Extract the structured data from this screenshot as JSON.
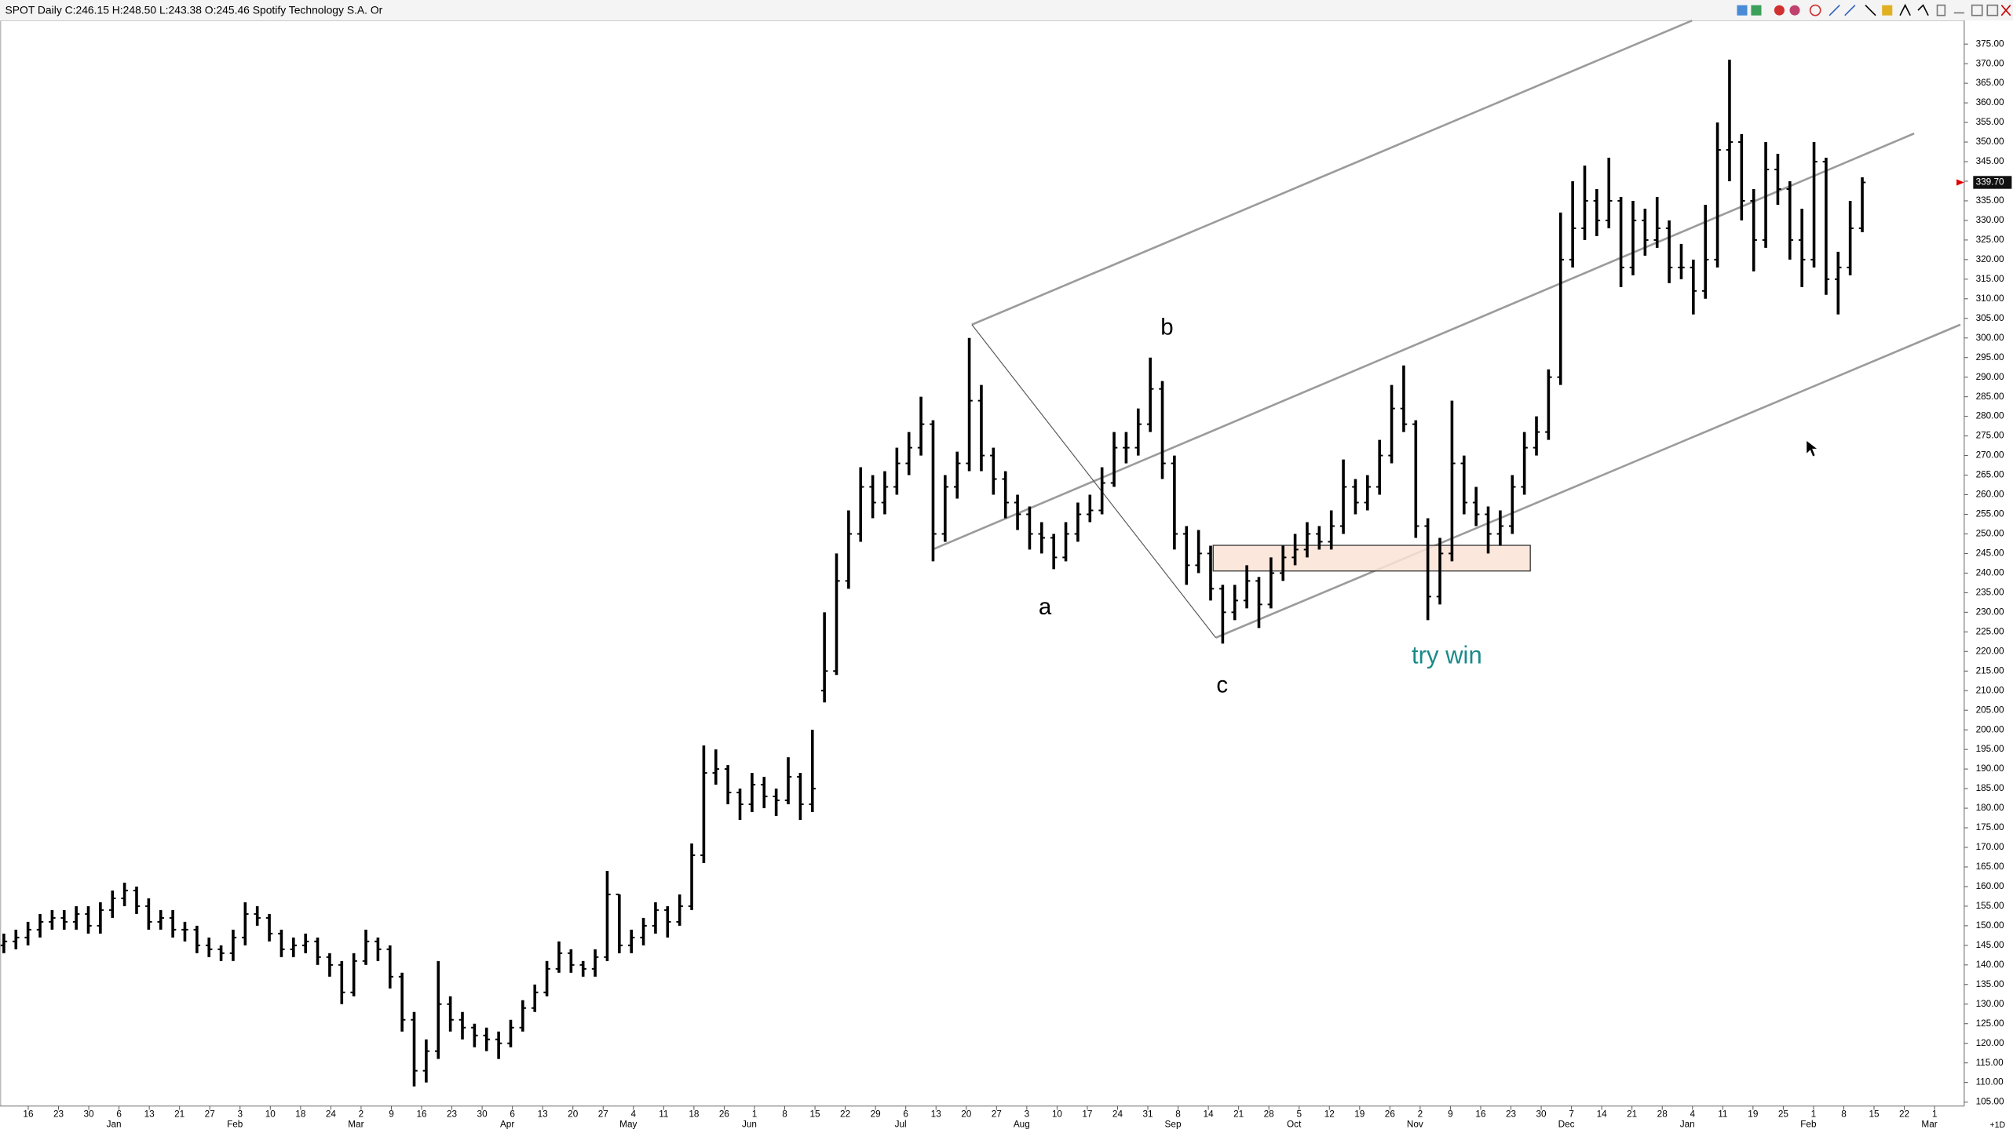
{
  "chart_data": {
    "type": "ohlc",
    "title": "SPOT Daily C:246.15 H:248.50 L:243.38 O:245.46 Spotify Technology S.A. Or",
    "color": "#000000",
    "last_price": {
      "value": 339.7,
      "label": "339.70"
    },
    "corner_label": "+1D",
    "annotations": [
      "a",
      "b",
      "c",
      "try win"
    ],
    "ylim": [
      104,
      381
    ],
    "yticks": [
      {
        "value": 105,
        "label": "105.00"
      },
      {
        "value": 110,
        "label": "110.00"
      },
      {
        "value": 115,
        "label": "115.00"
      },
      {
        "value": 120,
        "label": "120.00"
      },
      {
        "value": 125,
        "label": "125.00"
      },
      {
        "value": 130,
        "label": "130.00"
      },
      {
        "value": 135,
        "label": "135.00"
      },
      {
        "value": 140,
        "label": "140.00"
      },
      {
        "value": 145,
        "label": "145.00"
      },
      {
        "value": 150,
        "label": "150.00"
      },
      {
        "value": 155,
        "label": "155.00"
      },
      {
        "value": 160,
        "label": "160.00"
      },
      {
        "value": 165,
        "label": "165.00"
      },
      {
        "value": 170,
        "label": "170.00"
      },
      {
        "value": 175,
        "label": "175.00"
      },
      {
        "value": 180,
        "label": "180.00"
      },
      {
        "value": 185,
        "label": "185.00"
      },
      {
        "value": 190,
        "label": "190.00"
      },
      {
        "value": 195,
        "label": "195.00"
      },
      {
        "value": 200,
        "label": "200.00"
      },
      {
        "value": 205,
        "label": "205.00"
      },
      {
        "value": 210,
        "label": "210.00"
      },
      {
        "value": 215,
        "label": "215.00"
      },
      {
        "value": 220,
        "label": "220.00"
      },
      {
        "value": 225,
        "label": "225.00"
      },
      {
        "value": 230,
        "label": "230.00"
      },
      {
        "value": 235,
        "label": "235.00"
      },
      {
        "value": 240,
        "label": "240.00"
      },
      {
        "value": 245,
        "label": "245.00"
      },
      {
        "value": 250,
        "label": "250.00"
      },
      {
        "value": 255,
        "label": "255.00"
      },
      {
        "value": 260,
        "label": "260.00"
      },
      {
        "value": 265,
        "label": "265.00"
      },
      {
        "value": 270,
        "label": "270.00"
      },
      {
        "value": 275,
        "label": "275.00"
      },
      {
        "value": 280,
        "label": "280.00"
      },
      {
        "value": 285,
        "label": "285.00"
      },
      {
        "value": 290,
        "label": "290.00"
      },
      {
        "value": 295,
        "label": "295.00"
      },
      {
        "value": 300,
        "label": "300.00"
      },
      {
        "value": 305,
        "label": "305.00"
      },
      {
        "value": 310,
        "label": "310.00"
      },
      {
        "value": 315,
        "label": "315.00"
      },
      {
        "value": 320,
        "label": "320.00"
      },
      {
        "value": 325,
        "label": "325.00"
      },
      {
        "value": 330,
        "label": "330.00"
      },
      {
        "value": 335,
        "label": "335.00"
      },
      {
        "value": 340,
        "label": "340.00"
      },
      {
        "value": 345,
        "label": "345.00"
      },
      {
        "value": 350,
        "label": "350.00"
      },
      {
        "value": 355,
        "label": "355.00"
      },
      {
        "value": 360,
        "label": "360.00"
      },
      {
        "value": 365,
        "label": "365.00"
      },
      {
        "value": 370,
        "label": "370.00"
      },
      {
        "value": 375,
        "label": "375.00"
      }
    ],
    "x_ticks": [
      "16",
      "23",
      "30",
      {
        "day": "6",
        "month": "Jan"
      },
      "13",
      "21",
      "27",
      {
        "day": "3",
        "month": "Feb"
      },
      "10",
      "18",
      "24",
      {
        "day": "2",
        "month": "Mar"
      },
      "9",
      "16",
      "23",
      "30",
      {
        "day": "6",
        "month": "Apr"
      },
      "13",
      "20",
      "27",
      {
        "day": "4",
        "month": "May"
      },
      "11",
      "18",
      "26",
      {
        "day": "1",
        "month": "Jun"
      },
      "8",
      "15",
      "22",
      "29",
      {
        "day": "6",
        "month": "Jul"
      },
      "13",
      "20",
      "27",
      {
        "day": "3",
        "month": "Aug"
      },
      "10",
      "17",
      "24",
      "31",
      {
        "day": "8",
        "month": "Sep"
      },
      "14",
      "21",
      "28",
      {
        "day": "5",
        "month": "Oct"
      },
      "12",
      "19",
      "26",
      {
        "day": "2",
        "month": "Nov"
      },
      "9",
      "16",
      "23",
      "30",
      {
        "day": "7",
        "month": "Dec"
      },
      "14",
      "21",
      "28",
      {
        "day": "4",
        "month": "Jan"
      },
      "11",
      "19",
      "25",
      {
        "day": "1",
        "month": "Feb"
      },
      "8",
      "15",
      "22",
      {
        "day": "1",
        "month": "Mar"
      }
    ],
    "bars": [
      [
        145,
        148,
        143,
        146
      ],
      [
        146,
        149,
        144,
        147
      ],
      [
        147,
        151,
        145,
        149
      ],
      [
        149,
        153,
        147,
        151
      ],
      [
        151,
        154,
        149,
        152
      ],
      [
        152,
        154,
        149,
        151
      ],
      [
        151,
        155,
        149,
        153
      ],
      [
        153,
        155,
        148,
        150
      ],
      [
        150,
        156,
        148,
        154
      ],
      [
        154,
        159,
        152,
        157
      ],
      [
        157,
        161,
        155,
        159
      ],
      [
        159,
        160,
        153,
        155
      ],
      [
        155,
        157,
        149,
        151
      ],
      [
        151,
        154,
        149,
        152
      ],
      [
        152,
        154,
        147,
        149
      ],
      [
        149,
        151,
        146,
        149
      ],
      [
        149,
        150,
        143,
        145
      ],
      [
        145,
        147,
        142,
        144
      ],
      [
        144,
        145,
        141,
        143
      ],
      [
        143,
        149,
        141,
        147
      ],
      [
        147,
        156,
        145,
        153
      ],
      [
        153,
        155,
        150,
        152
      ],
      [
        152,
        153,
        146,
        148
      ],
      [
        148,
        149,
        142,
        144
      ],
      [
        144,
        147,
        142,
        145
      ],
      [
        145,
        148,
        143,
        146
      ],
      [
        146,
        147,
        140,
        142
      ],
      [
        142,
        143,
        137,
        140
      ],
      [
        140,
        141,
        130,
        133
      ],
      [
        133,
        143,
        132,
        141
      ],
      [
        141,
        149,
        140,
        146
      ],
      [
        146,
        147,
        141,
        144
      ],
      [
        144,
        145,
        134,
        137
      ],
      [
        137,
        138,
        123,
        126
      ],
      [
        126,
        128,
        109,
        113
      ],
      [
        113,
        121,
        110,
        118
      ],
      [
        118,
        141,
        116,
        130
      ],
      [
        130,
        132,
        123,
        126
      ],
      [
        126,
        128,
        121,
        124
      ],
      [
        124,
        125,
        119,
        122
      ],
      [
        122,
        124,
        118,
        121
      ],
      [
        121,
        123,
        116,
        120
      ],
      [
        120,
        126,
        119,
        124
      ],
      [
        124,
        131,
        123,
        129
      ],
      [
        129,
        135,
        128,
        133
      ],
      [
        133,
        141,
        132,
        139
      ],
      [
        139,
        146,
        138,
        143
      ],
      [
        143,
        144,
        138,
        140
      ],
      [
        140,
        141,
        137,
        139
      ],
      [
        139,
        144,
        137,
        142
      ],
      [
        142,
        164,
        141,
        158
      ],
      [
        158,
        158,
        143,
        145
      ],
      [
        145,
        149,
        143,
        147
      ],
      [
        147,
        152,
        145,
        150
      ],
      [
        150,
        156,
        148,
        154
      ],
      [
        154,
        155,
        147,
        151
      ],
      [
        151,
        158,
        150,
        155
      ],
      [
        155,
        171,
        154,
        168
      ],
      [
        168,
        196,
        166,
        189
      ],
      [
        189,
        195,
        186,
        190
      ],
      [
        190,
        191,
        181,
        184
      ],
      [
        184,
        185,
        177,
        181
      ],
      [
        181,
        189,
        179,
        186
      ],
      [
        186,
        188,
        180,
        183
      ],
      [
        183,
        185,
        178,
        182
      ],
      [
        182,
        193,
        181,
        188
      ],
      [
        188,
        189,
        177,
        181
      ],
      [
        181,
        200,
        179,
        185
      ],
      [
        210,
        230,
        207,
        215
      ],
      [
        215,
        245,
        214,
        238
      ],
      [
        238,
        256,
        236,
        250
      ],
      [
        250,
        267,
        248,
        262
      ],
      [
        262,
        265,
        254,
        258
      ],
      [
        258,
        266,
        255,
        262
      ],
      [
        262,
        272,
        260,
        268
      ],
      [
        268,
        276,
        265,
        272
      ],
      [
        272,
        285,
        270,
        278
      ],
      [
        278,
        279,
        243,
        250
      ],
      [
        250,
        265,
        248,
        262
      ],
      [
        262,
        271,
        259,
        268
      ],
      [
        268,
        300,
        266,
        284
      ],
      [
        284,
        288,
        266,
        270
      ],
      [
        270,
        272,
        260,
        264
      ],
      [
        264,
        266,
        254,
        258
      ],
      [
        258,
        260,
        251,
        255
      ],
      [
        255,
        257,
        246,
        250
      ],
      [
        250,
        253,
        245,
        249
      ],
      [
        249,
        250,
        241,
        244
      ],
      [
        244,
        253,
        243,
        250
      ],
      [
        250,
        258,
        248,
        255
      ],
      [
        255,
        260,
        253,
        256
      ],
      [
        256,
        267,
        255,
        263
      ],
      [
        263,
        276,
        262,
        272
      ],
      [
        272,
        276,
        268,
        272
      ],
      [
        272,
        282,
        270,
        278
      ],
      [
        278,
        295,
        276,
        287
      ],
      [
        287,
        289,
        264,
        268
      ],
      [
        268,
        270,
        246,
        250
      ],
      [
        250,
        252,
        237,
        242
      ],
      [
        242,
        251,
        240,
        245
      ],
      [
        245,
        247,
        233,
        236
      ],
      [
        236,
        237,
        222,
        230
      ],
      [
        230,
        237,
        228,
        233
      ],
      [
        233,
        242,
        231,
        238
      ],
      [
        238,
        239,
        226,
        232
      ],
      [
        232,
        244,
        231,
        240
      ],
      [
        240,
        247,
        238,
        244
      ],
      [
        244,
        250,
        242,
        246
      ],
      [
        246,
        253,
        244,
        250
      ],
      [
        250,
        252,
        246,
        248
      ],
      [
        248,
        256,
        246,
        252
      ],
      [
        252,
        269,
        250,
        262
      ],
      [
        262,
        264,
        255,
        258
      ],
      [
        258,
        265,
        256,
        262
      ],
      [
        262,
        274,
        260,
        270
      ],
      [
        270,
        288,
        268,
        282
      ],
      [
        282,
        293,
        276,
        278
      ],
      [
        278,
        279,
        249,
        252
      ],
      [
        252,
        254,
        228,
        234
      ],
      [
        234,
        249,
        232,
        245
      ],
      [
        245,
        284,
        243,
        268
      ],
      [
        268,
        270,
        255,
        258
      ],
      [
        258,
        262,
        252,
        255
      ],
      [
        255,
        257,
        245,
        250
      ],
      [
        250,
        256,
        247,
        252
      ],
      [
        252,
        265,
        250,
        262
      ],
      [
        262,
        276,
        260,
        272
      ],
      [
        272,
        280,
        270,
        276
      ],
      [
        276,
        292,
        274,
        290
      ],
      [
        290,
        332,
        288,
        320
      ],
      [
        320,
        340,
        318,
        328
      ],
      [
        328,
        344,
        325,
        335
      ],
      [
        335,
        338,
        326,
        330
      ],
      [
        330,
        346,
        328,
        335
      ],
      [
        335,
        336,
        313,
        318
      ],
      [
        318,
        335,
        316,
        330
      ],
      [
        330,
        333,
        321,
        325
      ],
      [
        325,
        336,
        323,
        328
      ],
      [
        328,
        330,
        314,
        318
      ],
      [
        318,
        324,
        315,
        318
      ],
      [
        318,
        320,
        306,
        312
      ],
      [
        312,
        334,
        310,
        320
      ],
      [
        320,
        355,
        318,
        348
      ],
      [
        348,
        371,
        340,
        350
      ],
      [
        350,
        352,
        330,
        335
      ],
      [
        335,
        338,
        317,
        325
      ],
      [
        325,
        350,
        323,
        343
      ],
      [
        343,
        347,
        334,
        338
      ],
      [
        338,
        340,
        320,
        325
      ],
      [
        325,
        333,
        313,
        320
      ],
      [
        320,
        350,
        318,
        345
      ],
      [
        345,
        346,
        311,
        315
      ],
      [
        315,
        322,
        306,
        318
      ],
      [
        318,
        335,
        316,
        328
      ],
      [
        328,
        341,
        327,
        339.7
      ]
    ]
  }
}
